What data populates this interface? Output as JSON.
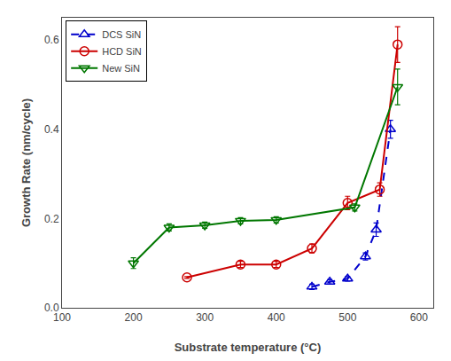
{
  "chart_data": {
    "type": "line",
    "xlabel": "Substrate temperature (°C)",
    "ylabel": "Growth Rate (nm/cycle)",
    "xlim": [
      100,
      620
    ],
    "ylim": [
      0.0,
      0.65
    ],
    "xticks": [
      100,
      200,
      300,
      400,
      500,
      600
    ],
    "yticks": [
      {
        "value": 0.0,
        "label": "0.0"
      },
      0.2,
      0.4,
      0.6
    ],
    "grid": false,
    "legend": "upper left",
    "series": [
      {
        "name": "DCS SiN",
        "color": "#0000cc",
        "marker": "triangle-up",
        "line_style": "dashed",
        "x": [
          450,
          475,
          500,
          525,
          540,
          560
        ],
        "values": [
          0.047,
          0.058,
          0.065,
          0.115,
          0.175,
          0.4
        ],
        "yerr": [
          0.006,
          0.005,
          0.005,
          0.008,
          0.015,
          0.02
        ]
      },
      {
        "name": "HCD SiN",
        "color": "#cc0000",
        "marker": "circle",
        "line_style": "solid",
        "x": [
          275,
          350,
          400,
          450,
          500,
          545,
          570
        ],
        "values": [
          0.068,
          0.097,
          0.097,
          0.133,
          0.235,
          0.265,
          0.59
        ],
        "yerr": [
          0.002,
          0.007,
          0.007,
          0.01,
          0.015,
          0.015,
          0.04
        ]
      },
      {
        "name": "New SiN",
        "color": "#007700",
        "marker": "triangle-down",
        "line_style": "solid",
        "x": [
          200,
          250,
          300,
          350,
          400,
          510,
          570
        ],
        "values": [
          0.1,
          0.18,
          0.185,
          0.195,
          0.197,
          0.225,
          0.495
        ],
        "yerr": [
          0.012,
          0.008,
          0.007,
          0.007,
          0.007,
          0.008,
          0.04
        ]
      }
    ]
  }
}
